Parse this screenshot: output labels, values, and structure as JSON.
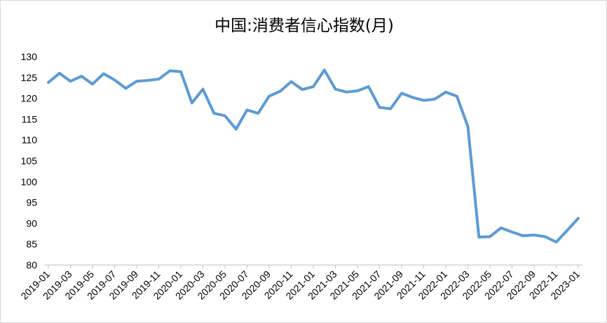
{
  "chart_data": {
    "type": "line",
    "title": "中国:消费者信心指数(月)",
    "xlabel": "",
    "ylabel": "",
    "ylim": [
      80,
      130
    ],
    "yticks": [
      "130",
      "125",
      "120",
      "115",
      "110",
      "105",
      "100",
      "95",
      "90",
      "85",
      "80"
    ],
    "xticks": [
      "2019-01",
      "2019-03",
      "2019-05",
      "2019-07",
      "2019-09",
      "2019-11",
      "2020-01",
      "2020-03",
      "2020-05",
      "2020-07",
      "2020-09",
      "2020-11",
      "2021-01",
      "2021-03",
      "2021-05",
      "2021-07",
      "2021-09",
      "2021-11",
      "2022-01",
      "2022-03",
      "2022-05",
      "2022-07",
      "2022-09",
      "2022-11",
      "2023-01"
    ],
    "grid": false,
    "legend": "none",
    "line_color": "#5b9bd5",
    "x": [
      "2019-01",
      "2019-02",
      "2019-03",
      "2019-04",
      "2019-05",
      "2019-06",
      "2019-07",
      "2019-08",
      "2019-09",
      "2019-10",
      "2019-11",
      "2019-12",
      "2020-01",
      "2020-02",
      "2020-03",
      "2020-04",
      "2020-05",
      "2020-06",
      "2020-07",
      "2020-08",
      "2020-09",
      "2020-10",
      "2020-11",
      "2020-12",
      "2021-01",
      "2021-02",
      "2021-03",
      "2021-04",
      "2021-05",
      "2021-06",
      "2021-07",
      "2021-08",
      "2021-09",
      "2021-10",
      "2021-11",
      "2021-12",
      "2022-01",
      "2022-02",
      "2022-03",
      "2022-04",
      "2022-05",
      "2022-06",
      "2022-07",
      "2022-08",
      "2022-09",
      "2022-10",
      "2022-11",
      "2022-12",
      "2023-01"
    ],
    "series": [
      {
        "values": [
          123.8,
          126.0,
          124.1,
          125.3,
          123.4,
          125.9,
          124.4,
          122.4,
          124.1,
          124.3,
          124.6,
          126.6,
          126.4,
          118.9,
          122.2,
          116.4,
          115.8,
          112.6,
          117.2,
          116.4,
          120.5,
          121.7,
          124.0,
          122.1,
          122.8,
          126.8,
          122.2,
          121.5,
          121.8,
          122.8,
          117.8,
          117.5,
          121.2,
          120.2,
          119.5,
          119.8,
          121.5,
          120.5,
          113.2,
          86.7,
          86.8,
          88.9,
          87.9,
          87.0,
          87.2,
          86.8,
          85.5,
          88.3,
          91.2
        ]
      }
    ]
  }
}
